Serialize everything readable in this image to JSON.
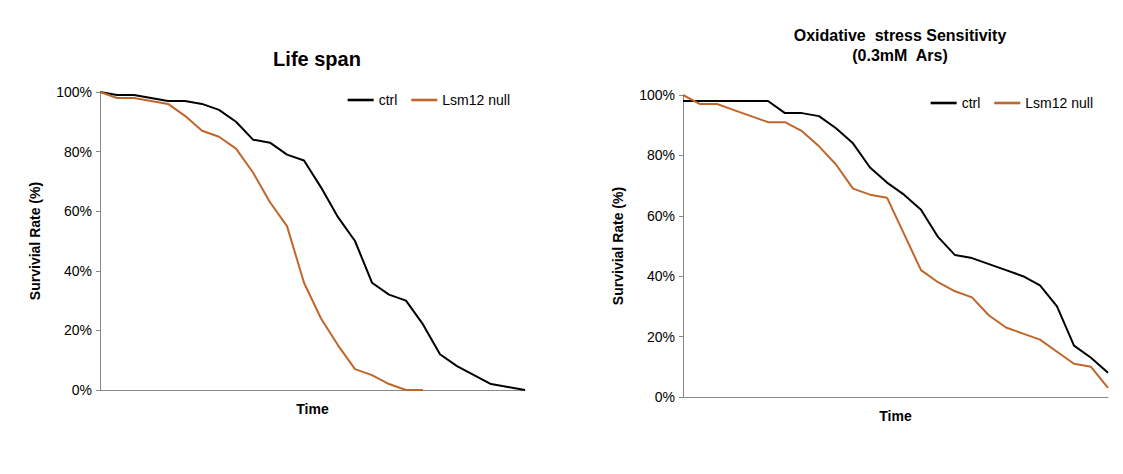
{
  "chart_data": [
    {
      "type": "line",
      "title": "Life span",
      "x_label": "Time",
      "y_label": "Survivial Rate (%)",
      "x": [
        0,
        4,
        8,
        12,
        16,
        20,
        24,
        28,
        32,
        36,
        40,
        44,
        48,
        52,
        56,
        60,
        64,
        68,
        72,
        76,
        80,
        84,
        88,
        92,
        96,
        100
      ],
      "xlim": [
        0,
        100
      ],
      "ylim": [
        0,
        100
      ],
      "yticks": [
        {
          "value": 0,
          "label": "0%"
        },
        {
          "value": 20,
          "label": "20%"
        },
        {
          "value": 40,
          "label": "40%"
        },
        {
          "value": 60,
          "label": "60%"
        },
        {
          "value": 80,
          "label": "80%"
        },
        {
          "value": 100,
          "label": "100%"
        }
      ],
      "tick_labels": "y",
      "grid": false,
      "legend": "upper right",
      "series": [
        {
          "name": "ctrl",
          "color": "#000000",
          "values": [
            100,
            99,
            99,
            98,
            97,
            97,
            96,
            94,
            90,
            84,
            83,
            79,
            77,
            68,
            58,
            50,
            36,
            32,
            30,
            22,
            12,
            8,
            5,
            2,
            1,
            0
          ]
        },
        {
          "name": "Lsm12 null",
          "color": "#C0662B",
          "values": [
            100,
            98,
            98,
            97,
            96,
            92,
            87,
            85,
            81,
            73,
            63,
            55,
            36,
            24,
            15,
            7,
            5,
            2,
            0,
            0,
            null,
            null,
            null,
            null,
            null,
            null
          ]
        }
      ]
    },
    {
      "type": "line",
      "title": "Oxidative  stress Sensitivity\n(0.3mM  Ars)",
      "x_label": "Time",
      "y_label": "Survivial Rate (%)",
      "x": [
        0,
        4,
        8,
        12,
        16,
        20,
        24,
        28,
        32,
        36,
        40,
        44,
        48,
        52,
        56,
        60,
        64,
        68,
        72,
        76,
        80,
        84,
        88,
        92,
        96,
        100
      ],
      "xlim": [
        0,
        100
      ],
      "ylim": [
        0,
        100
      ],
      "yticks": [
        {
          "value": 0,
          "label": "0%"
        },
        {
          "value": 20,
          "label": "20%"
        },
        {
          "value": 40,
          "label": "40%"
        },
        {
          "value": 60,
          "label": "60%"
        },
        {
          "value": 80,
          "label": "80%"
        },
        {
          "value": 100,
          "label": "100%"
        }
      ],
      "tick_labels": "y",
      "grid": false,
      "legend": "upper right",
      "series": [
        {
          "name": "ctrl",
          "color": "#000000",
          "values": [
            98,
            98,
            98,
            98,
            98,
            98,
            94,
            94,
            93,
            89,
            84,
            76,
            71,
            67,
            62,
            53,
            47,
            46,
            44,
            42,
            40,
            37,
            30,
            17,
            13,
            8
          ]
        },
        {
          "name": "Lsm12 null",
          "color": "#C0662B",
          "values": [
            100,
            97,
            97,
            95,
            93,
            91,
            91,
            88,
            83,
            77,
            69,
            67,
            66,
            54,
            42,
            38,
            35,
            33,
            27,
            23,
            21,
            19,
            15,
            11,
            10,
            3
          ]
        }
      ]
    }
  ]
}
